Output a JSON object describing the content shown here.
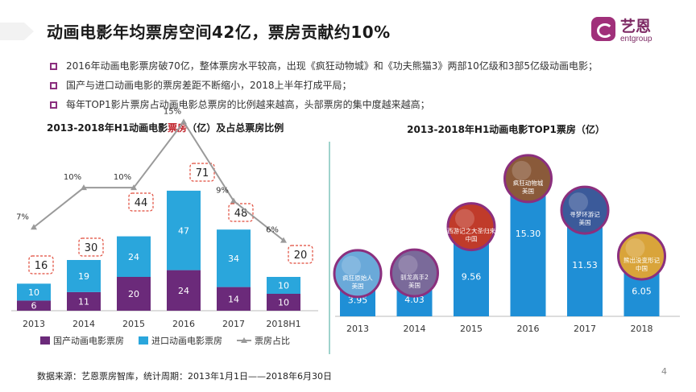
{
  "title": "动画电影年均票房空间42亿，票房贡献约10%",
  "logo": {
    "cn": "艺恩",
    "en": "entgroup"
  },
  "bullets": [
    "2016年动画电影票房破70亿，整体票房水平较高，出现《疯狂动物城》和《功夫熊猫3》两部10亿级和3部5亿级动画电影；",
    "国产与进口动画电影的票房差距不断缩小，2018上半年打成平局；",
    "每年TOP1影片票房占动画电影总票房的比例越来越高，头部票房的集中度越来越高；"
  ],
  "colors": {
    "domestic": "#6b2a7a",
    "imported": "#2aa6dc",
    "top1": "#1f8fd6",
    "line": "#9a9a9a",
    "callout": "#e04a3a",
    "bullet": "#8b2f7e"
  },
  "chart_data": [
    {
      "type": "bar",
      "title": "2013-2018年H1动画电影票房（亿）及占总票房比例",
      "title_parts": [
        "2013-2018年H1动画电影",
        "票房",
        "（亿）及占总票房比例"
      ],
      "categories": [
        "2013",
        "2014",
        "2015",
        "2016",
        "2017",
        "2018H1"
      ],
      "series": [
        {
          "name": "国产动画电影票房",
          "values": [
            6,
            11,
            20,
            24,
            14,
            10
          ],
          "color": "#6b2a7a"
        },
        {
          "name": "进口动画电影票房",
          "values": [
            10,
            19,
            24,
            47,
            34,
            10
          ],
          "color": "#2aa6dc"
        }
      ],
      "totals": [
        16,
        30,
        44,
        71,
        48,
        20
      ],
      "line_series": {
        "name": "票房占比",
        "values": [
          7,
          10,
          10,
          15,
          9,
          6
        ],
        "labels": [
          "7%",
          "10%",
          "10%",
          "15%",
          "9%",
          "6%"
        ]
      },
      "stacked": true,
      "ylim": [
        0,
        80
      ],
      "grid": false,
      "legend": "bottom"
    },
    {
      "type": "bar",
      "title": "2013-2018年H1动画电影TOP1票房（亿）",
      "categories": [
        "2013",
        "2014",
        "2015",
        "2016",
        "2017",
        "2018"
      ],
      "values": [
        3.95,
        4.03,
        9.56,
        15.3,
        11.53,
        6.05
      ],
      "labels": [
        "3.95",
        "4.03",
        "9.56",
        "15.30",
        "11.53",
        "6.05"
      ],
      "posters": [
        {
          "name": "疯狂原始人",
          "region": "美国"
        },
        {
          "name": "驯龙高手2",
          "region": "美国"
        },
        {
          "name": "西游记之大圣归来",
          "region": "中国"
        },
        {
          "name": "疯狂动物城",
          "region": "美国"
        },
        {
          "name": "寻梦环游记",
          "region": "美国"
        },
        {
          "name": "熊出没变形记",
          "region": "中国"
        }
      ],
      "ylim": [
        0,
        17
      ],
      "grid": false
    }
  ],
  "footnote": "数据来源：艺恩票房智库，统计周期：2013年1月1日——2018年6月30日",
  "page_number": "4"
}
